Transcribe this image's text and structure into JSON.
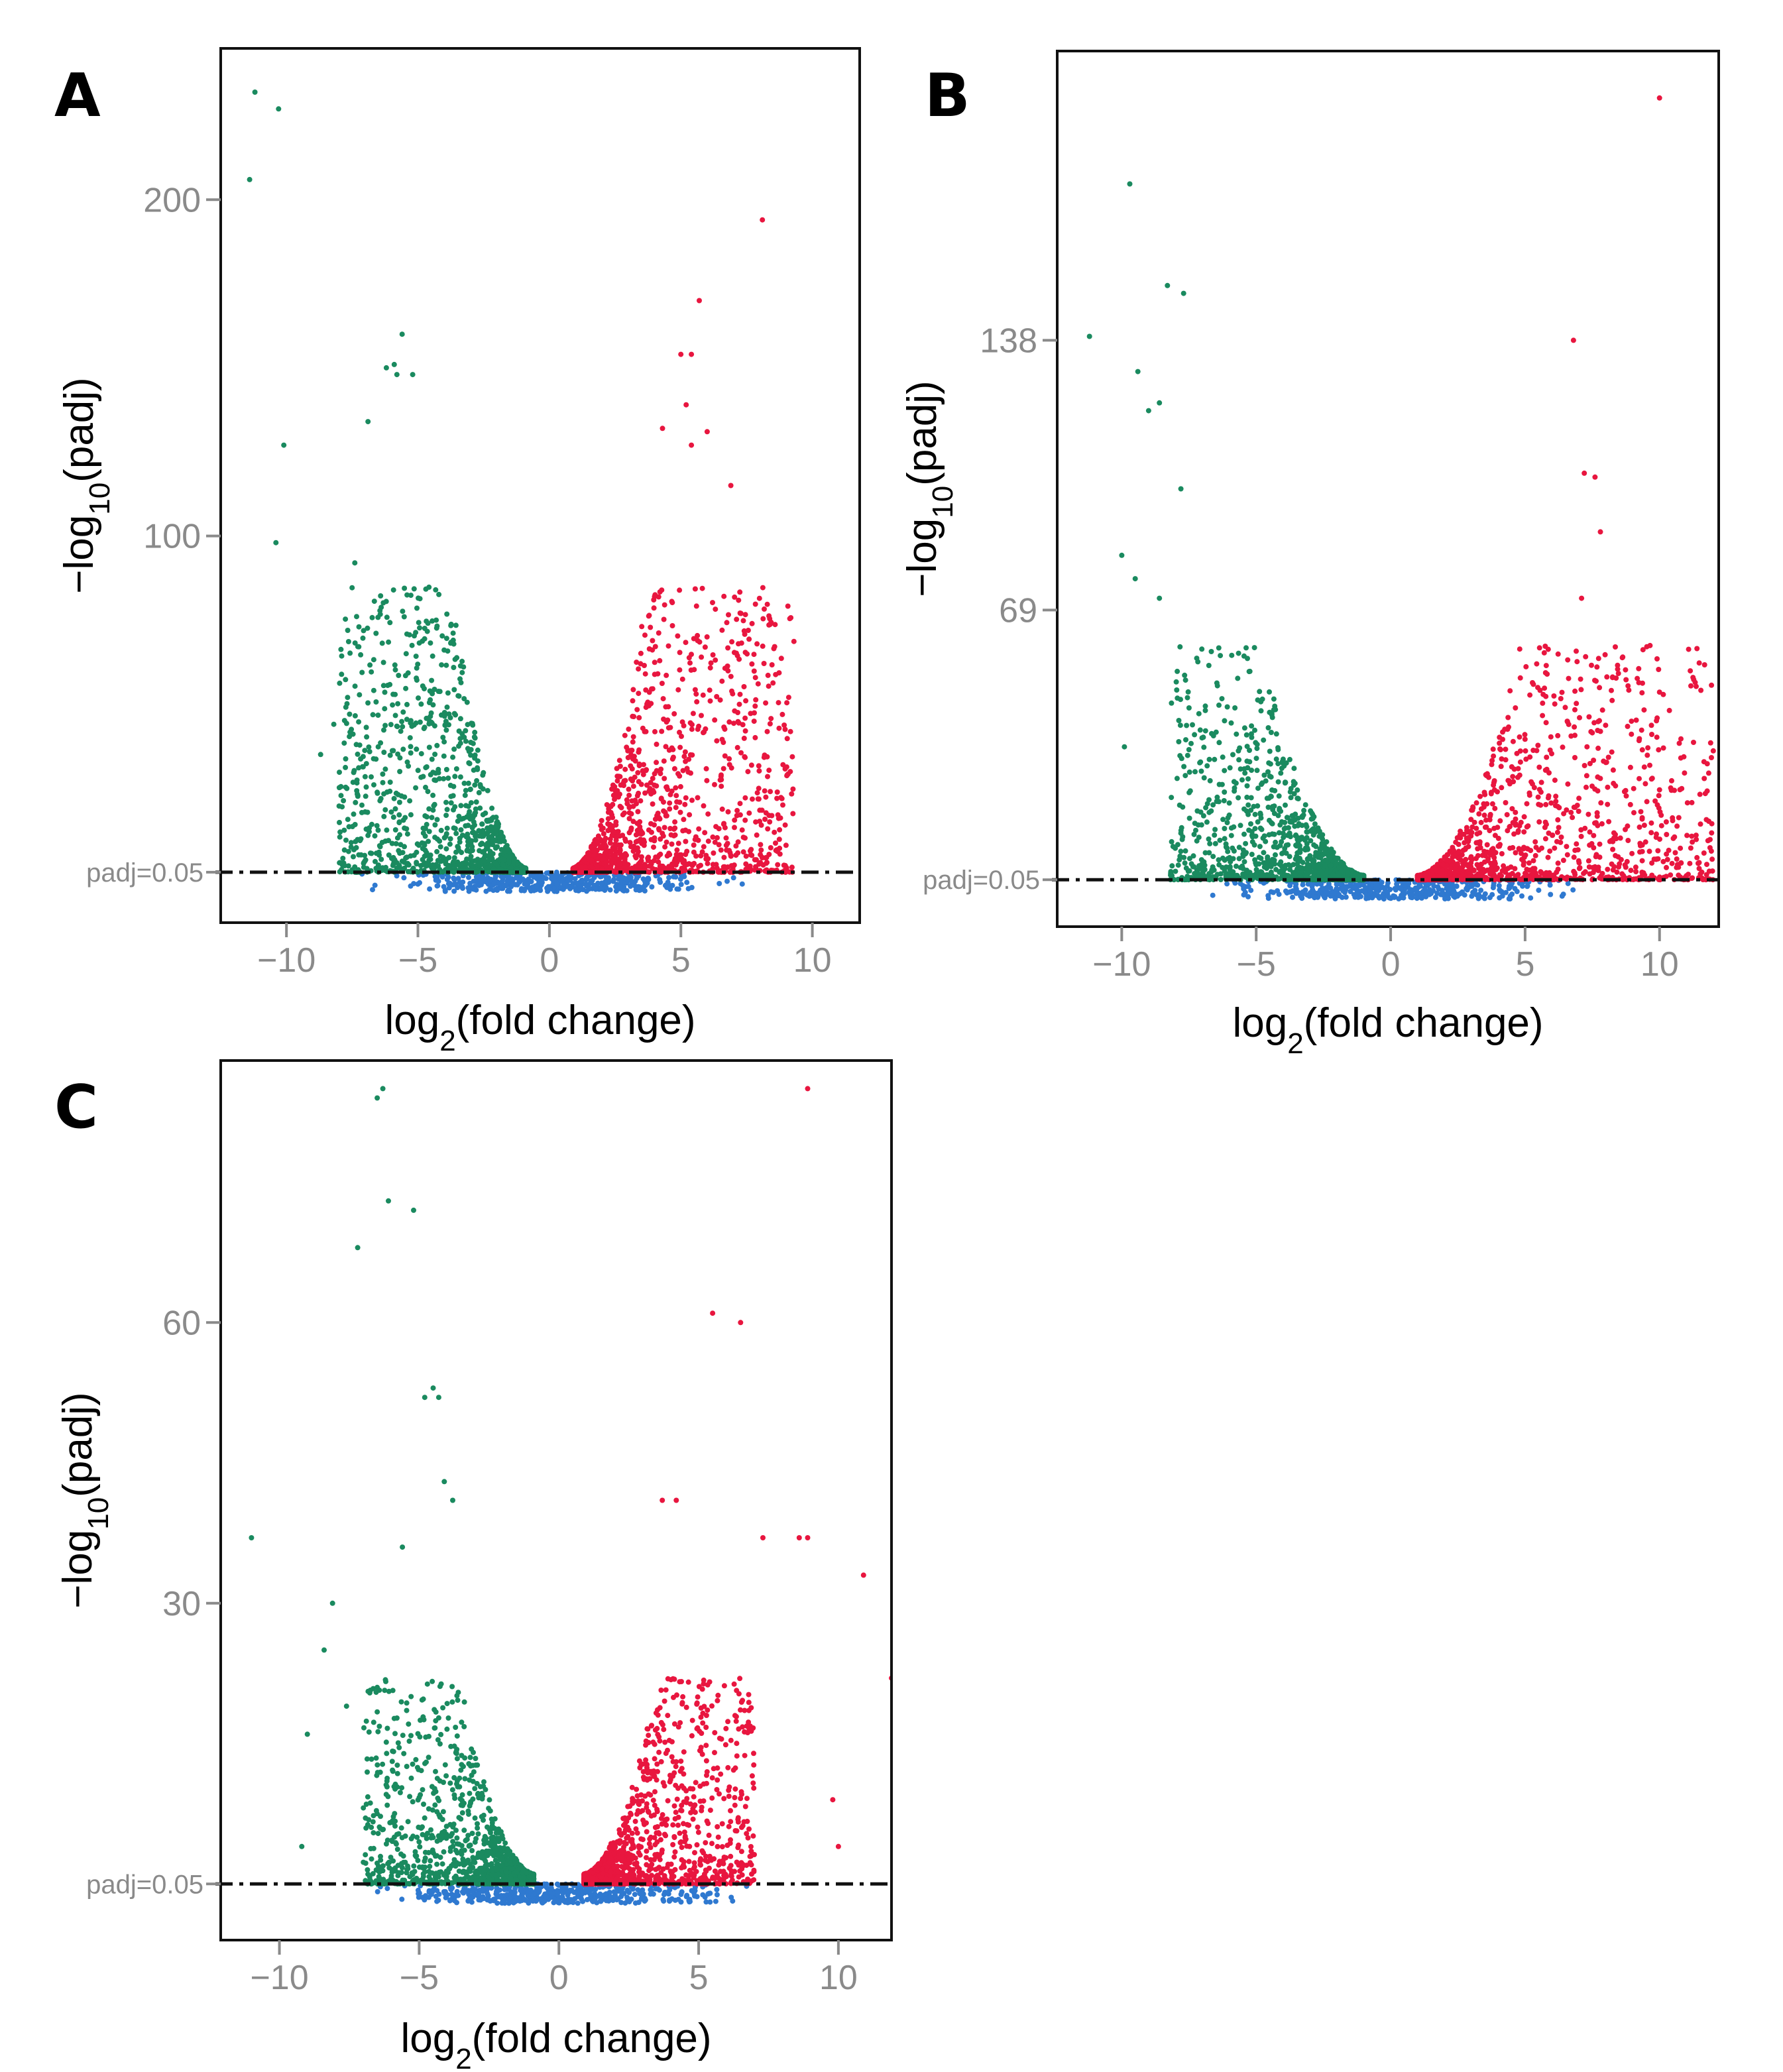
{
  "colors": {
    "down": "#1a8a5f",
    "up": "#e8163f",
    "ns": "#2f79d0",
    "threshold": "#111111",
    "tick_text": "#8a8a8a",
    "frame": "#111111"
  },
  "chart_data": [
    {
      "panel": "A",
      "type": "scatter",
      "title": "",
      "xlabel": {
        "main": "log",
        "sub": "2",
        "rest": "(fold change)"
      },
      "ylabel": {
        "main": "−log",
        "sub": "10",
        "rest": "(padj)"
      },
      "xlim": [
        -12.5,
        11.8
      ],
      "ylim": [
        -15,
        245
      ],
      "x_ticks": [
        -10,
        -5,
        0,
        5,
        10
      ],
      "x_tick_labels": [
        "−10",
        "−5",
        "0",
        "5",
        "10"
      ],
      "y_ticks": [
        100,
        200
      ],
      "y_tick_labels": [
        "100",
        "200"
      ],
      "threshold": {
        "y": 0,
        "label": "padj=0.05"
      },
      "envelope": {
        "k": 9.5,
        "cut": 0.9,
        "down_xmin": -8,
        "up_xmax": 9.3,
        "dense_max": 85
      },
      "counts": {
        "down": 1500,
        "up": 1500,
        "ns": 450
      },
      "seed": 11,
      "highlight_points": [
        [
          -11.2,
          232,
          "down"
        ],
        [
          -10.3,
          227,
          "down"
        ],
        [
          -11.4,
          206,
          "down"
        ],
        [
          -10.1,
          127,
          "down"
        ],
        [
          -10.4,
          98,
          "down"
        ],
        [
          -7.4,
          92,
          "down"
        ],
        [
          -5.6,
          160,
          "down"
        ],
        [
          -6.2,
          150,
          "down"
        ],
        [
          -5.8,
          148,
          "down"
        ],
        [
          -5.2,
          148,
          "down"
        ],
        [
          -5.9,
          151,
          "down"
        ],
        [
          -6.9,
          134,
          "down"
        ],
        [
          -7.6,
          47,
          "down"
        ],
        [
          -8.7,
          35,
          "down"
        ],
        [
          -8.2,
          44,
          "down"
        ],
        [
          8.1,
          194,
          "up"
        ],
        [
          5.7,
          170,
          "up"
        ],
        [
          5.0,
          154,
          "up"
        ],
        [
          5.4,
          154,
          "up"
        ],
        [
          5.2,
          139,
          "up"
        ],
        [
          6.0,
          131,
          "up"
        ],
        [
          6.9,
          115,
          "up"
        ],
        [
          4.3,
          132,
          "up"
        ],
        [
          5.4,
          127,
          "up"
        ],
        [
          9.1,
          52,
          "up"
        ],
        [
          8.4,
          24,
          "up"
        ],
        [
          9.0,
          8,
          "up"
        ]
      ]
    },
    {
      "panel": "B",
      "type": "scatter",
      "title": "",
      "xlabel": {
        "main": "log",
        "sub": "2",
        "rest": "(fold change)"
      },
      "ylabel": {
        "main": "−log",
        "sub": "10",
        "rest": "(padj)"
      },
      "xlim": [
        -12.4,
        12.2
      ],
      "ylim": [
        -12,
        212
      ],
      "x_ticks": [
        -10,
        -5,
        0,
        5,
        10
      ],
      "x_tick_labels": [
        "−10",
        "−5",
        "0",
        "5",
        "10"
      ],
      "y_ticks": [
        69,
        138
      ],
      "y_tick_labels": [
        "69",
        "138"
      ],
      "threshold": {
        "y": 0,
        "label": "padj=0.05"
      },
      "envelope": {
        "k": 3.8,
        "cut": 1.0,
        "down_xmin": -8.2,
        "up_xmax": 12,
        "dense_max": 60
      },
      "counts": {
        "down": 1500,
        "up": 1500,
        "ns": 450
      },
      "seed": 23,
      "highlight_points": [
        [
          -9.7,
          178,
          "down"
        ],
        [
          -11.2,
          139,
          "down"
        ],
        [
          -9.4,
          130,
          "down"
        ],
        [
          -8.3,
          152,
          "down"
        ],
        [
          -7.7,
          150,
          "down"
        ],
        [
          -8.6,
          122,
          "down"
        ],
        [
          -9.0,
          120,
          "down"
        ],
        [
          -7.8,
          100,
          "down"
        ],
        [
          -10.0,
          83,
          "down"
        ],
        [
          -9.5,
          77,
          "down"
        ],
        [
          -8.6,
          72,
          "down"
        ],
        [
          -9.9,
          34,
          "down"
        ],
        [
          10.0,
          200,
          "up"
        ],
        [
          6.8,
          138,
          "up"
        ],
        [
          7.6,
          103,
          "up"
        ],
        [
          7.2,
          104,
          "up"
        ],
        [
          7.8,
          89,
          "up"
        ],
        [
          7.1,
          72,
          "up"
        ],
        [
          10.0,
          48,
          "up"
        ],
        [
          10.0,
          23,
          "up"
        ],
        [
          11.9,
          35,
          "up"
        ],
        [
          11.8,
          10,
          "up"
        ]
      ]
    },
    {
      "panel": "C",
      "type": "scatter",
      "title": "",
      "xlabel": {
        "main": "log",
        "sub": "2",
        "rest": "(fold change)"
      },
      "ylabel": {
        "main": "−log",
        "sub": "10",
        "rest": "(padj)"
      },
      "xlim": [
        -12.1,
        11.9
      ],
      "ylim": [
        -6,
        88
      ],
      "x_ticks": [
        -10,
        -5,
        0,
        5,
        10
      ],
      "x_tick_labels": [
        "−10",
        "−5",
        "0",
        "5",
        "10"
      ],
      "y_ticks": [
        30,
        60
      ],
      "y_tick_labels": [
        "30",
        "60"
      ],
      "threshold": {
        "y": 0,
        "label": "padj=0.05"
      },
      "envelope": {
        "k": 2.7,
        "cut": 0.9,
        "down_xmin": -7,
        "up_xmax": 7,
        "dense_max": 22
      },
      "counts": {
        "down": 1400,
        "up": 1400,
        "ns": 500
      },
      "seed": 37,
      "highlight_points": [
        [
          -6.3,
          85,
          "down"
        ],
        [
          -6.5,
          84,
          "down"
        ],
        [
          -6.1,
          73,
          "down"
        ],
        [
          -5.2,
          72,
          "down"
        ],
        [
          -7.2,
          68,
          "down"
        ],
        [
          -4.5,
          53,
          "down"
        ],
        [
          -4.8,
          52,
          "down"
        ],
        [
          -4.3,
          52,
          "down"
        ],
        [
          -4.1,
          43,
          "down"
        ],
        [
          -3.8,
          41,
          "down"
        ],
        [
          -11.0,
          37,
          "down"
        ],
        [
          -5.6,
          36,
          "down"
        ],
        [
          -8.1,
          30,
          "down"
        ],
        [
          -8.4,
          25,
          "down"
        ],
        [
          -9.0,
          16,
          "down"
        ],
        [
          -7.6,
          19,
          "down"
        ],
        [
          -6.5,
          21,
          "down"
        ],
        [
          -9.2,
          4,
          "down"
        ],
        [
          8.9,
          85,
          "up"
        ],
        [
          5.5,
          61,
          "up"
        ],
        [
          6.5,
          60,
          "up"
        ],
        [
          4.2,
          41,
          "up"
        ],
        [
          3.7,
          41,
          "up"
        ],
        [
          8.6,
          37,
          "up"
        ],
        [
          8.9,
          37,
          "up"
        ],
        [
          7.3,
          37,
          "up"
        ],
        [
          10.9,
          33,
          "up"
        ],
        [
          9.8,
          9,
          "up"
        ],
        [
          10.0,
          4,
          "up"
        ],
        [
          11.9,
          22,
          "up"
        ]
      ]
    }
  ]
}
